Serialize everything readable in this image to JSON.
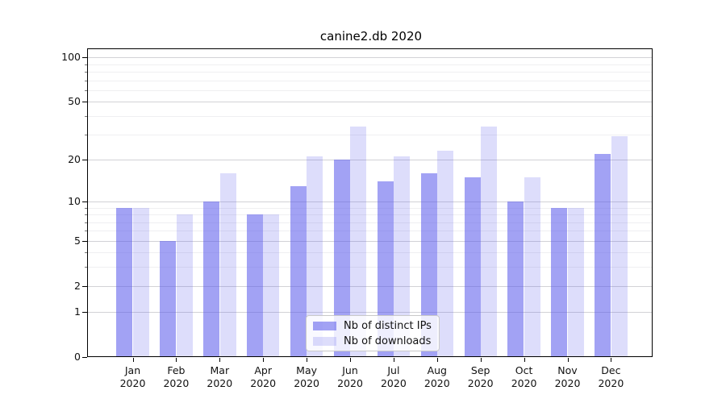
{
  "title": "canine2.db 2020",
  "chart_data": {
    "type": "bar",
    "title": "canine2.db 2020",
    "categories": [
      "Jan 2020",
      "Feb 2020",
      "Mar 2020",
      "Apr 2020",
      "May 2020",
      "Jun 2020",
      "Jul 2020",
      "Aug 2020",
      "Sep 2020",
      "Oct 2020",
      "Nov 2020",
      "Dec 2020"
    ],
    "series": [
      {
        "name": "Nb of distinct IPs",
        "color": "rgba(85,85,235,0.55)",
        "legend_color_hex": "#a2a2f4",
        "values": [
          9,
          5,
          10,
          8,
          13,
          20,
          14,
          16,
          15,
          10,
          9,
          22
        ]
      },
      {
        "name": "Nb of downloads",
        "color": "rgba(85,85,235,0.20)",
        "legend_color_hex": "#ddddfb",
        "values": [
          9,
          8,
          16,
          8,
          21,
          34,
          21,
          23,
          34,
          15,
          9,
          29
        ]
      }
    ],
    "yscale": "log(value+1)",
    "y_ticks": [
      0,
      1,
      2,
      5,
      10,
      20,
      50,
      100
    ],
    "y_minor_ticks": [
      3,
      4,
      6,
      7,
      8,
      9,
      30,
      40,
      60,
      70,
      80,
      90
    ],
    "ylim": [
      0,
      115
    ],
    "xlabel": "",
    "ylabel": "",
    "grid": true,
    "legend_position": "lower center",
    "background_color": "#ffffff",
    "grid_major_color": "#d2d2d6",
    "grid_minor_color": "#efeff1"
  }
}
